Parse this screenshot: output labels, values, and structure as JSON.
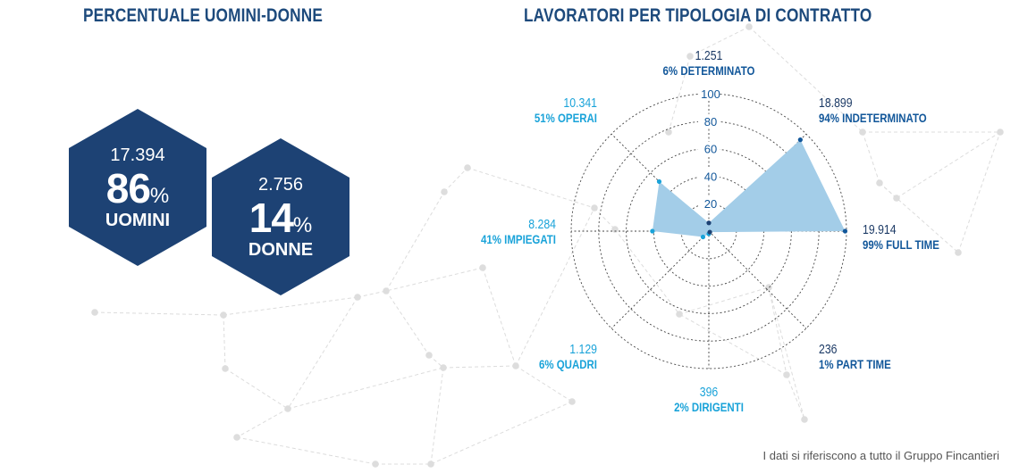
{
  "left": {
    "title": "PERCENTUALE UOMINI-DONNE",
    "men": {
      "count": "17.394",
      "pct": "86",
      "sign": "%",
      "label": "UOMINI"
    },
    "women": {
      "count": "2.756",
      "pct": "14",
      "sign": "%",
      "label": "DONNE"
    }
  },
  "chart_data": {
    "type": "radar",
    "title": "LAVORATORI PER TIPOLOGIA DI CONTRATTO",
    "rlim": [
      0,
      100
    ],
    "rticks": [
      "20",
      "40",
      "60",
      "80",
      "100"
    ],
    "series": [
      {
        "color": "#a3cde8",
        "points": [
          {
            "category": "FULL TIME",
            "value": 99,
            "count": "19.914",
            "label": "99% FULL TIME",
            "group": "dark"
          },
          {
            "category": "INDETERMINATO",
            "value": 94,
            "count": "18.899",
            "label": "94% INDETERMINATO",
            "group": "dark"
          },
          {
            "category": "DETERMINATO",
            "value": 6,
            "count": "1.251",
            "label": "6% DETERMINATO",
            "group": "dark"
          },
          {
            "category": "OPERAI",
            "value": 51,
            "count": "10.341",
            "label": "51% OPERAI",
            "group": "light"
          },
          {
            "category": "IMPIEGATI",
            "value": 41,
            "count": "8.284",
            "label": "41% IMPIEGATI",
            "group": "light"
          },
          {
            "category": "QUADRI",
            "value": 6,
            "count": "1.129",
            "label": "6% QUADRI",
            "group": "light"
          },
          {
            "category": "DIRIGENTI",
            "value": 2,
            "count": "396",
            "label": "2% DIRIGENTI",
            "group": "light"
          },
          {
            "category": "PART TIME",
            "value": 1,
            "count": "236",
            "label": "1% PART TIME",
            "group": "dark"
          }
        ]
      }
    ]
  },
  "colors": {
    "navy": "#1d4274",
    "title": "#1d4a7c",
    "dark_label": "#12579a",
    "light_label": "#1aa3d9",
    "fill": "#a3cde8"
  },
  "footer": "I dati si riferiscono a tutto il Gruppo Fincantieri"
}
